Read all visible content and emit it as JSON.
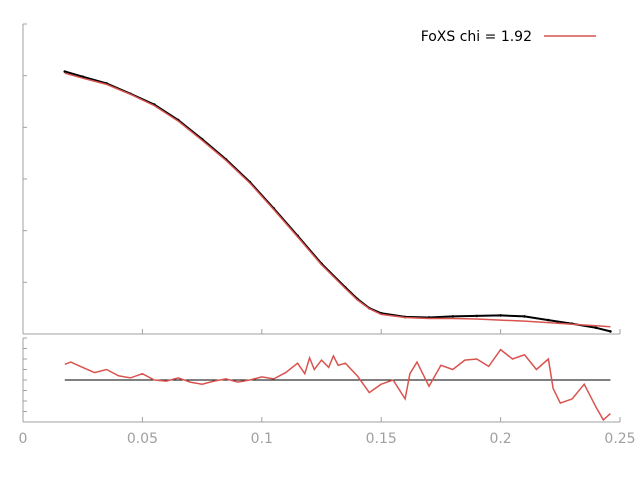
{
  "chart_data": {
    "type": "line",
    "legend": {
      "label": "FoXS chi = 1.92",
      "color": "#d9534f",
      "placement": "top-right"
    },
    "colors": {
      "data": "#000000",
      "fit": "#d9534f",
      "residual": "#d9534f",
      "zero_line": "#000000",
      "axis": "#a0a0a0"
    },
    "xlim": [
      0,
      0.25
    ],
    "x_ticks": [
      {
        "value": 0,
        "label": "0"
      },
      {
        "value": 0.05,
        "label": "0.05"
      },
      {
        "value": 0.1,
        "label": "0.1"
      },
      {
        "value": 0.15,
        "label": "0.15"
      },
      {
        "value": 0.2,
        "label": "0.2"
      },
      {
        "value": 0.25,
        "label": "0.25"
      }
    ],
    "top_panel": {
      "ylim": [
        0,
        6
      ],
      "y_tick_values": [
        0,
        1,
        2,
        3,
        4,
        5,
        6
      ],
      "series": [
        {
          "role": "experimental",
          "x": [
            0.0175,
            0.025,
            0.035,
            0.045,
            0.055,
            0.065,
            0.075,
            0.085,
            0.095,
            0.105,
            0.115,
            0.125,
            0.135,
            0.14,
            0.145,
            0.15,
            0.16,
            0.17,
            0.18,
            0.19,
            0.2,
            0.21,
            0.22,
            0.23,
            0.24,
            0.246
          ],
          "y": [
            5.08,
            4.98,
            4.85,
            4.65,
            4.44,
            4.14,
            3.77,
            3.38,
            2.94,
            2.43,
            1.9,
            1.36,
            0.9,
            0.68,
            0.5,
            0.4,
            0.33,
            0.32,
            0.34,
            0.35,
            0.36,
            0.34,
            0.27,
            0.2,
            0.12,
            0.05
          ]
        },
        {
          "role": "fit",
          "x": [
            0.0175,
            0.025,
            0.035,
            0.045,
            0.055,
            0.065,
            0.075,
            0.085,
            0.095,
            0.105,
            0.115,
            0.125,
            0.135,
            0.14,
            0.145,
            0.15,
            0.16,
            0.17,
            0.18,
            0.19,
            0.2,
            0.21,
            0.22,
            0.23,
            0.24,
            0.246
          ],
          "y": [
            5.05,
            4.95,
            4.83,
            4.64,
            4.42,
            4.12,
            3.75,
            3.36,
            2.92,
            2.41,
            1.88,
            1.34,
            0.88,
            0.66,
            0.49,
            0.38,
            0.32,
            0.3,
            0.3,
            0.29,
            0.27,
            0.25,
            0.22,
            0.19,
            0.16,
            0.14
          ]
        }
      ]
    },
    "bottom_panel": {
      "ylim": [
        -2,
        2
      ],
      "y_tick_values": [
        -2,
        -1.5,
        -1,
        -0.5,
        0,
        0.5,
        1,
        1.5,
        2
      ],
      "zero_line": 0,
      "series": [
        {
          "role": "residual",
          "x": [
            0.0175,
            0.02,
            0.025,
            0.03,
            0.035,
            0.04,
            0.045,
            0.05,
            0.055,
            0.06,
            0.065,
            0.07,
            0.075,
            0.08,
            0.085,
            0.09,
            0.095,
            0.1,
            0.105,
            0.11,
            0.115,
            0.118,
            0.12,
            0.122,
            0.125,
            0.128,
            0.13,
            0.132,
            0.135,
            0.14,
            0.145,
            0.15,
            0.155,
            0.16,
            0.162,
            0.165,
            0.17,
            0.175,
            0.18,
            0.185,
            0.19,
            0.195,
            0.2,
            0.205,
            0.21,
            0.215,
            0.22,
            0.222,
            0.225,
            0.23,
            0.235,
            0.24,
            0.243,
            0.246
          ],
          "y": [
            0.75,
            0.85,
            0.6,
            0.35,
            0.5,
            0.2,
            0.1,
            0.3,
            0.0,
            -0.05,
            0.1,
            -0.1,
            -0.2,
            -0.05,
            0.05,
            -0.1,
            0.0,
            0.15,
            0.05,
            0.35,
            0.8,
            0.3,
            1.05,
            0.5,
            0.95,
            0.6,
            1.15,
            0.7,
            0.8,
            0.2,
            -0.6,
            -0.2,
            0.0,
            -0.9,
            0.3,
            0.85,
            -0.3,
            0.7,
            0.5,
            0.95,
            1.0,
            0.65,
            1.45,
            1.0,
            1.2,
            0.5,
            1.0,
            -0.4,
            -1.1,
            -0.9,
            -0.2,
            -1.3,
            -1.9,
            -1.6
          ]
        }
      ]
    }
  }
}
